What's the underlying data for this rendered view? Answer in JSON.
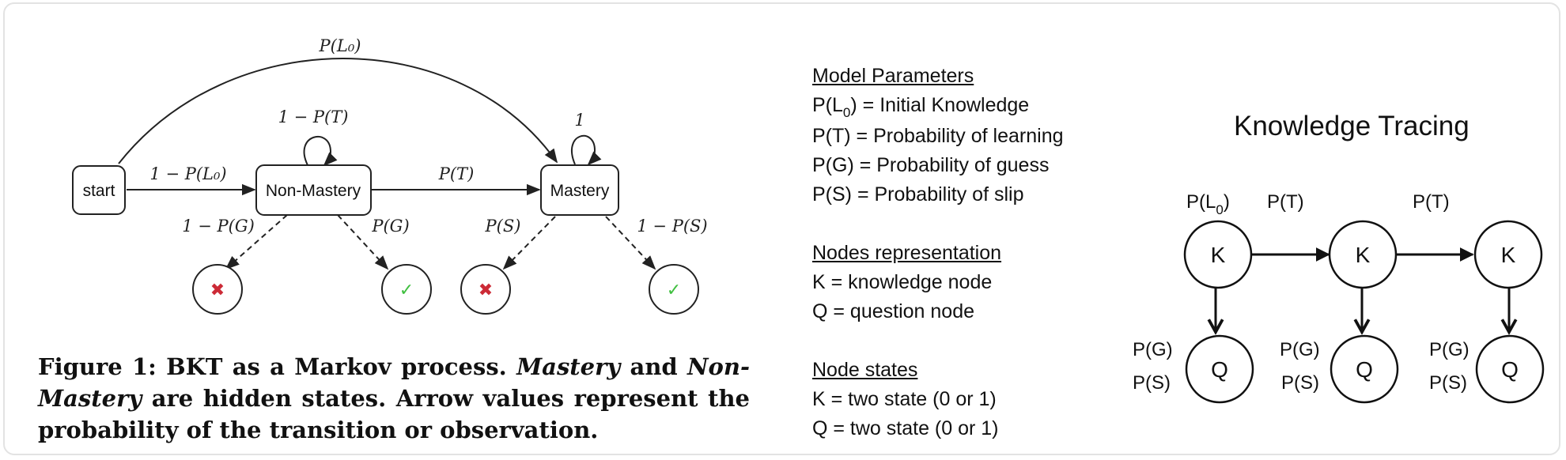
{
  "markov": {
    "nodes": {
      "start": "start",
      "non_mastery": "Non-Mastery",
      "mastery": "Mastery"
    },
    "edges": {
      "start_to_mastery": "P(L₀)",
      "start_to_non_mastery": "1 − P(L₀)",
      "non_mastery_self": "1 − P(T)",
      "non_mastery_to_mastery": "P(T)",
      "mastery_self": "1",
      "non_mastery_wrong": "1 − P(G)",
      "non_mastery_right": "P(G)",
      "mastery_wrong": "P(S)",
      "mastery_right": "1 − P(S)"
    },
    "symbols": {
      "wrong": "✖",
      "right": "✓"
    },
    "colors": {
      "wrong": "#cc2a36",
      "right": "#3fbf3f"
    }
  },
  "caption": {
    "prefix": "Figure 1: BKT as a Markov process. ",
    "em1": "Mastery",
    "mid1": " and ",
    "em2": "Non-Mastery",
    "rest": " are hidden states. Arrow values represent the probability of the transition or observation."
  },
  "legend": {
    "params_header": "Model Parameters",
    "params": [
      {
        "pre": "P(L",
        "sub": "0",
        "post": ") = Initial Knowledge"
      },
      {
        "pre": "P(T) = Probability of learning"
      },
      {
        "pre": "P(G) = Probability of guess"
      },
      {
        "pre": "P(S) = Probability of slip"
      }
    ],
    "nodes_header": "Nodes representation",
    "nodes": [
      "K = knowledge node",
      "Q = question node"
    ],
    "states_header": "Node states",
    "states": [
      "K = two state (0 or 1)",
      "Q = two state (0 or 1)"
    ]
  },
  "knowledge_tracing": {
    "title": "Knowledge Tracing",
    "k_label": "K",
    "q_label": "Q",
    "initial_label": {
      "pre": "P(L",
      "sub": "0",
      "post": ")"
    },
    "transition_label": "P(T)",
    "guess_label": "P(G)",
    "slip_label": "P(S)"
  }
}
